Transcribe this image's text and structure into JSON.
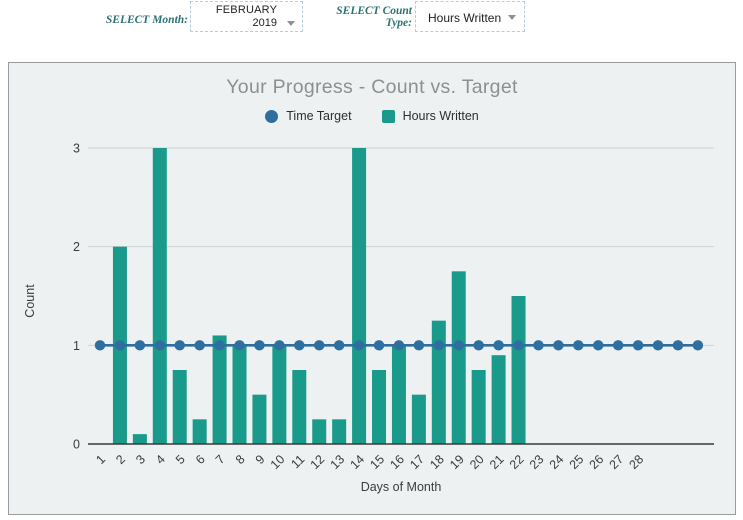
{
  "controls": {
    "month_label": "SELECT Month:",
    "month_value_line1": "FEBRUARY",
    "month_value_line2": "2019",
    "type_label_line1": "SELECT Count",
    "type_label_line2": "Type:",
    "type_value": "Hours Written"
  },
  "chart": {
    "title": "Your Progress - Count vs. Target",
    "legend": [
      {
        "label": "Time Target",
        "shape": "circle",
        "color": "#2f6f9f"
      },
      {
        "label": "Hours Written",
        "shape": "square",
        "color": "#199a8b"
      }
    ]
  },
  "chart_data": {
    "type": "bar",
    "title": "Your Progress - Count vs. Target",
    "xlabel": "Days of Month",
    "ylabel": "Count",
    "ylim": [
      0,
      3
    ],
    "yticks": [
      0,
      1,
      2,
      3
    ],
    "grid": true,
    "legend_position": "top",
    "categories": [
      1,
      2,
      3,
      4,
      5,
      6,
      7,
      8,
      9,
      10,
      11,
      12,
      13,
      14,
      15,
      16,
      17,
      18,
      19,
      20,
      21,
      22,
      23,
      24,
      25,
      26,
      27,
      28
    ],
    "series": [
      {
        "name": "Time Target",
        "type": "line",
        "color": "#2f6f9f",
        "x": [
          1,
          2,
          3,
          4,
          5,
          6,
          7,
          8,
          9,
          10,
          11,
          12,
          13,
          14,
          15,
          16,
          17,
          18,
          19,
          20,
          21,
          22,
          23,
          24,
          25,
          26,
          27,
          28,
          29,
          30,
          31
        ],
        "values": [
          1,
          1,
          1,
          1,
          1,
          1,
          1,
          1,
          1,
          1,
          1,
          1,
          1,
          1,
          1,
          1,
          1,
          1,
          1,
          1,
          1,
          1,
          1,
          1,
          1,
          1,
          1,
          1,
          1,
          1,
          1
        ]
      },
      {
        "name": "Hours Written",
        "type": "bar",
        "color": "#199a8b",
        "values": [
          0,
          2,
          0.1,
          3,
          0.75,
          0.25,
          1.1,
          1,
          0.5,
          1,
          0.75,
          0.25,
          0.25,
          3,
          0.75,
          1,
          0.5,
          1.25,
          1.75,
          0.75,
          0.9,
          1.5,
          0,
          0,
          0,
          0,
          0,
          0
        ]
      }
    ]
  },
  "colors": {
    "bar": "#199a8b",
    "line": "#2f6f9f",
    "grid": "#ccd1d3",
    "axis": "#3a3a3a",
    "tick_text": "#3c3c3c",
    "title_text": "#8d9092",
    "card_bg": "#edf1f2",
    "filter_label": "#2c7373"
  }
}
